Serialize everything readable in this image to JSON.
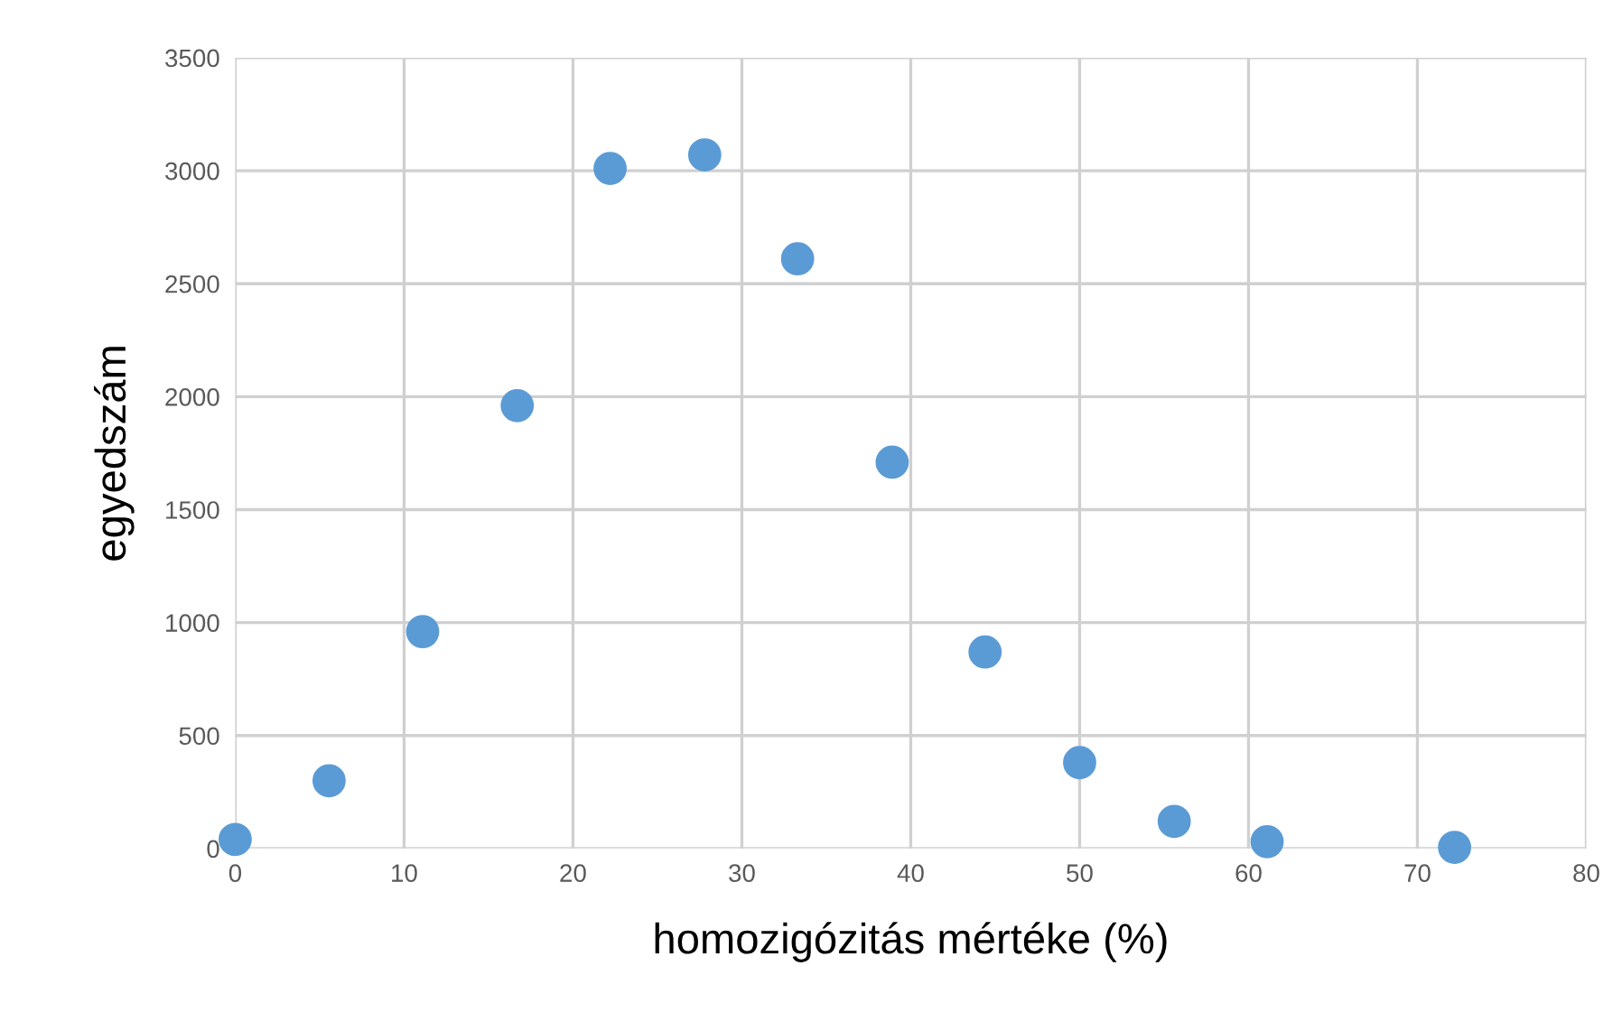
{
  "chart_data": {
    "type": "scatter",
    "xlabel": "homozigózitás mértéke (%)",
    "ylabel": "egyedszám",
    "x": [
      0,
      5.56,
      11.1,
      16.7,
      22.2,
      27.8,
      33.3,
      38.9,
      44.4,
      50,
      55.6,
      61.1,
      72.2
    ],
    "series": [
      {
        "color": "#5b9bd5",
        "values": [
          40,
          300,
          960,
          1960,
          3010,
          3070,
          2610,
          1710,
          870,
          380,
          120,
          30,
          5
        ]
      }
    ],
    "xlim": [
      0,
      80
    ],
    "xticks": [
      0,
      10,
      20,
      30,
      40,
      50,
      60,
      70,
      80
    ],
    "ylim": [
      0,
      3500
    ],
    "yticks": [
      0,
      500,
      1000,
      1500,
      2000,
      2500,
      3000,
      3500
    ],
    "grid": true,
    "marker": "circle"
  }
}
